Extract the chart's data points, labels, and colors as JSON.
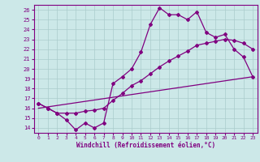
{
  "xlabel": "Windchill (Refroidissement éolien,°C)",
  "ylabel": "",
  "bg_color": "#cce8e8",
  "line_color": "#800080",
  "grid_color": "#aacccc",
  "xlim": [
    -0.5,
    23.5
  ],
  "ylim": [
    13.5,
    26.5
  ],
  "xticks": [
    0,
    1,
    2,
    3,
    4,
    5,
    6,
    7,
    8,
    9,
    10,
    11,
    12,
    13,
    14,
    15,
    16,
    17,
    18,
    19,
    20,
    21,
    22,
    23
  ],
  "yticks": [
    14,
    15,
    16,
    17,
    18,
    19,
    20,
    21,
    22,
    23,
    24,
    25,
    26
  ],
  "line1_x": [
    0,
    1,
    2,
    3,
    4,
    5,
    6,
    7,
    8,
    9,
    10,
    11,
    12,
    13,
    14,
    15,
    16,
    17,
    18,
    19,
    20,
    21,
    22,
    23
  ],
  "line1_y": [
    16.5,
    16.0,
    15.5,
    14.8,
    13.8,
    14.5,
    14.0,
    14.5,
    18.5,
    19.2,
    20.0,
    21.7,
    24.5,
    26.2,
    25.5,
    25.5,
    25.0,
    25.8,
    23.7,
    23.2,
    23.5,
    22.0,
    21.2,
    19.2
  ],
  "line2_x": [
    0,
    1,
    2,
    3,
    4,
    5,
    6,
    7,
    8,
    9,
    10,
    11,
    12,
    13,
    14,
    15,
    16,
    17,
    18,
    19,
    20,
    21,
    22,
    23
  ],
  "line2_y": [
    16.5,
    16.0,
    15.5,
    15.5,
    15.5,
    15.7,
    15.8,
    16.0,
    16.8,
    17.5,
    18.3,
    18.8,
    19.5,
    20.2,
    20.8,
    21.3,
    21.8,
    22.4,
    22.6,
    22.8,
    23.0,
    22.9,
    22.6,
    22.0
  ],
  "line3_x": [
    0,
    23
  ],
  "line3_y": [
    16.0,
    19.2
  ]
}
